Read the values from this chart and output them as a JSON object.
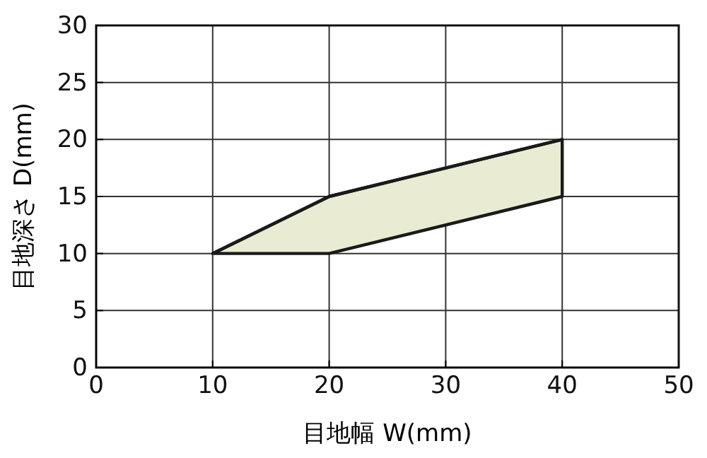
{
  "chart_data": {
    "type": "line",
    "xlabel": "目地幅 W(mm)",
    "ylabel": "目地深さ D(mm)",
    "xlim": [
      0,
      50
    ],
    "xticks": [
      0,
      10,
      20,
      30,
      40,
      50
    ],
    "ylim": [
      0,
      30
    ],
    "yticks": [
      0,
      5,
      10,
      15,
      20,
      25,
      30
    ],
    "grid": true,
    "series": [
      {
        "color": "#1a1a1a",
        "x": [
          10,
          20,
          40
        ],
        "values": [
          10,
          15,
          20
        ],
        "lower": [
          10,
          10,
          15
        ],
        "upper": [
          10,
          15,
          20
        ]
      }
    ]
  }
}
